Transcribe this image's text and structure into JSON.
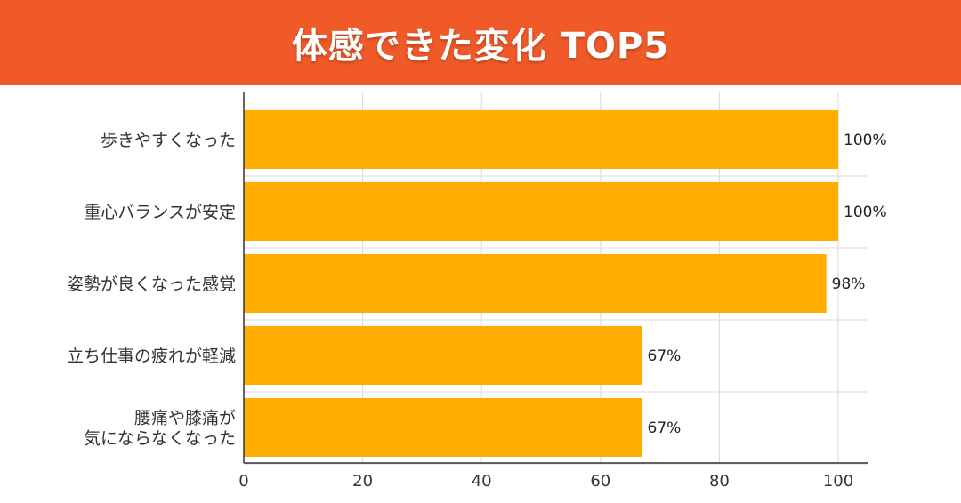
{
  "header": {
    "title": "体感できた変化 TOP5",
    "background_color": "#f05a29"
  },
  "chart_data": {
    "type": "bar",
    "orientation": "horizontal",
    "title": "体感できた変化 TOP5",
    "categories": [
      "歩きやすくなった",
      "重心バランスが安定",
      "姿勢が良くなった感覚",
      "立ち仕事の疲れが軽減",
      "腰痛や膝痛が\n気にならなくなった"
    ],
    "values": [
      100,
      100,
      98,
      67,
      67
    ],
    "value_labels": [
      "100%",
      "100%",
      "98%",
      "67%",
      "67%"
    ],
    "xlim": [
      0,
      105
    ],
    "xticks": [
      0,
      20,
      40,
      60,
      80,
      100
    ],
    "xtick_labels": [
      "0",
      "20",
      "40",
      "60",
      "80",
      "100"
    ],
    "xlabel": "",
    "ylabel": "",
    "grid": true,
    "legend": "none",
    "bar_color": "#ffae00"
  }
}
